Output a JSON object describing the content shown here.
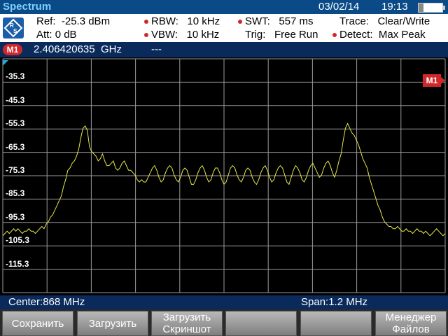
{
  "header": {
    "title": "Spectrum",
    "date": "03/02/14",
    "time": "19:13"
  },
  "info": {
    "ref_label": "Ref:",
    "ref_value": "-25.3 dBm",
    "att_label": "Att:",
    "att_value": "0 dB",
    "rbw_label": "RBW:",
    "rbw_value": "10 kHz",
    "vbw_label": "VBW:",
    "vbw_value": "10 kHz",
    "swt_label": "SWT:",
    "swt_value": "557 ms",
    "trig_label": "Trig:",
    "trig_value": "Free Run",
    "trace_label": "Trace:",
    "trace_value": "Clear/Write",
    "detect_label": "Detect:",
    "detect_value": "Max Peak"
  },
  "marker": {
    "badge": "M1",
    "frequency": "2.406420635",
    "unit": "GHz",
    "value": "---"
  },
  "plot": {
    "y_labels": [
      "-35.3",
      "-45.3",
      "-55.3",
      "-65.3",
      "-75.3",
      "-85.3",
      "-95.3",
      "-105.3",
      "-115.3"
    ],
    "marker_flag": "M1",
    "trace_color": "#e8e84a",
    "trace_dbm": [
      -101,
      -100,
      -99,
      -100,
      -99,
      -98,
      -99,
      -98,
      -99,
      -100,
      -99,
      -99,
      -98,
      -99,
      -99,
      -100,
      -99,
      -98,
      -97,
      -98,
      -96,
      -95,
      -93,
      -92,
      -90,
      -88,
      -86,
      -84,
      -80,
      -77,
      -73,
      -72,
      -70,
      -69,
      -67,
      -64,
      -59,
      -55,
      -54,
      -56,
      -63,
      -65,
      -66,
      -67,
      -69,
      -68,
      -66,
      -69,
      -71,
      -71,
      -70,
      -69,
      -72,
      -73,
      -72,
      -70,
      -69,
      -71,
      -73,
      -73,
      -74,
      -75,
      -77,
      -78,
      -77,
      -78,
      -78,
      -76,
      -74,
      -72,
      -71,
      -73,
      -76,
      -78,
      -77,
      -74,
      -72,
      -71,
      -72,
      -75,
      -77,
      -78,
      -76,
      -73,
      -72,
      -73,
      -76,
      -79,
      -79,
      -77,
      -74,
      -72,
      -71,
      -73,
      -76,
      -78,
      -77,
      -74,
      -72,
      -72,
      -74,
      -77,
      -79,
      -78,
      -75,
      -72,
      -71,
      -72,
      -75,
      -77,
      -78,
      -76,
      -73,
      -72,
      -73,
      -76,
      -78,
      -79,
      -77,
      -74,
      -72,
      -71,
      -73,
      -76,
      -78,
      -77,
      -74,
      -72,
      -71,
      -72,
      -75,
      -78,
      -79,
      -76,
      -73,
      -71,
      -72,
      -74,
      -77,
      -78,
      -76,
      -73,
      -71,
      -70,
      -72,
      -74,
      -76,
      -75,
      -72,
      -70,
      -69,
      -71,
      -74,
      -76,
      -73,
      -69,
      -66,
      -60,
      -55,
      -53,
      -55,
      -57,
      -58,
      -60,
      -62,
      -65,
      -68,
      -70,
      -72,
      -76,
      -79,
      -82,
      -85,
      -88,
      -90,
      -93,
      -95,
      -96,
      -97,
      -97,
      -98,
      -98,
      -97,
      -98,
      -99,
      -99,
      -98,
      -99,
      -99,
      -100,
      -99,
      -98,
      -99,
      -99,
      -100,
      -99,
      -100,
      -101,
      -100,
      -99,
      -98,
      -99,
      -100,
      -101,
      -100
    ]
  },
  "footer": {
    "center": "Center:868 MHz",
    "span": "Span:1.2 MHz"
  },
  "softkeys": [
    {
      "line1": "Сохранить",
      "line2": ""
    },
    {
      "line1": "Загрузить",
      "line2": ""
    },
    {
      "line1": "Загрузить",
      "line2": "Скриншот"
    },
    {
      "line1": "",
      "line2": ""
    },
    {
      "line1": "",
      "line2": ""
    },
    {
      "line1": "Менеджер",
      "line2": "Файлов"
    }
  ]
}
